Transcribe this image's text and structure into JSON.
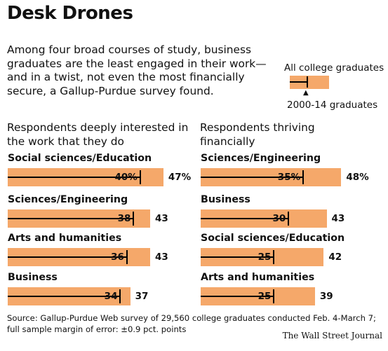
{
  "title": "Desk Drones",
  "intro": "Among four broad courses of study, business graduates are the least engaged in their work—and in a twist, not even the most financially secure, a Gallup-Purdue survey found.",
  "legend": {
    "all_graduates": "All college graduates",
    "recent_graduates": "2000-14 graduates",
    "colors": {
      "all": "#f5a86a",
      "recent": "#000000"
    }
  },
  "source": "Source: Gallup-Purdue Web survey of 29,560 college graduates conducted Feb. 4-March 7; full sample margin of error: ±0.9 pct. points",
  "credit": "The Wall Street Journal",
  "chart_data": [
    {
      "type": "bar",
      "title": "Respondents deeply interested in the work that they do",
      "unit": "%",
      "categories": [
        "Social sciences/Education",
        "Sciences/Engineering",
        "Arts and humanities",
        "Business"
      ],
      "series": [
        {
          "name": "All college graduates",
          "values": [
            47,
            43,
            43,
            37
          ]
        },
        {
          "name": "2000-14 graduates",
          "values": [
            40,
            38,
            36,
            34
          ]
        }
      ],
      "value_labels_all": [
        "47%",
        "43",
        "43",
        "37"
      ],
      "value_labels_recent": [
        "40%",
        "38",
        "36",
        "34"
      ]
    },
    {
      "type": "bar",
      "title": "Respondents thriving financially",
      "unit": "%",
      "categories": [
        "Sciences/Engineering",
        "Business",
        "Social sciences/Education",
        "Arts and humanities"
      ],
      "series": [
        {
          "name": "All college graduates",
          "values": [
            48,
            43,
            42,
            39
          ]
        },
        {
          "name": "2000-14 graduates",
          "values": [
            35,
            30,
            25,
            25
          ]
        }
      ],
      "value_labels_all": [
        "48%",
        "43",
        "42",
        "39"
      ],
      "value_labels_recent": [
        "35%",
        "30",
        "25",
        "25"
      ]
    }
  ]
}
